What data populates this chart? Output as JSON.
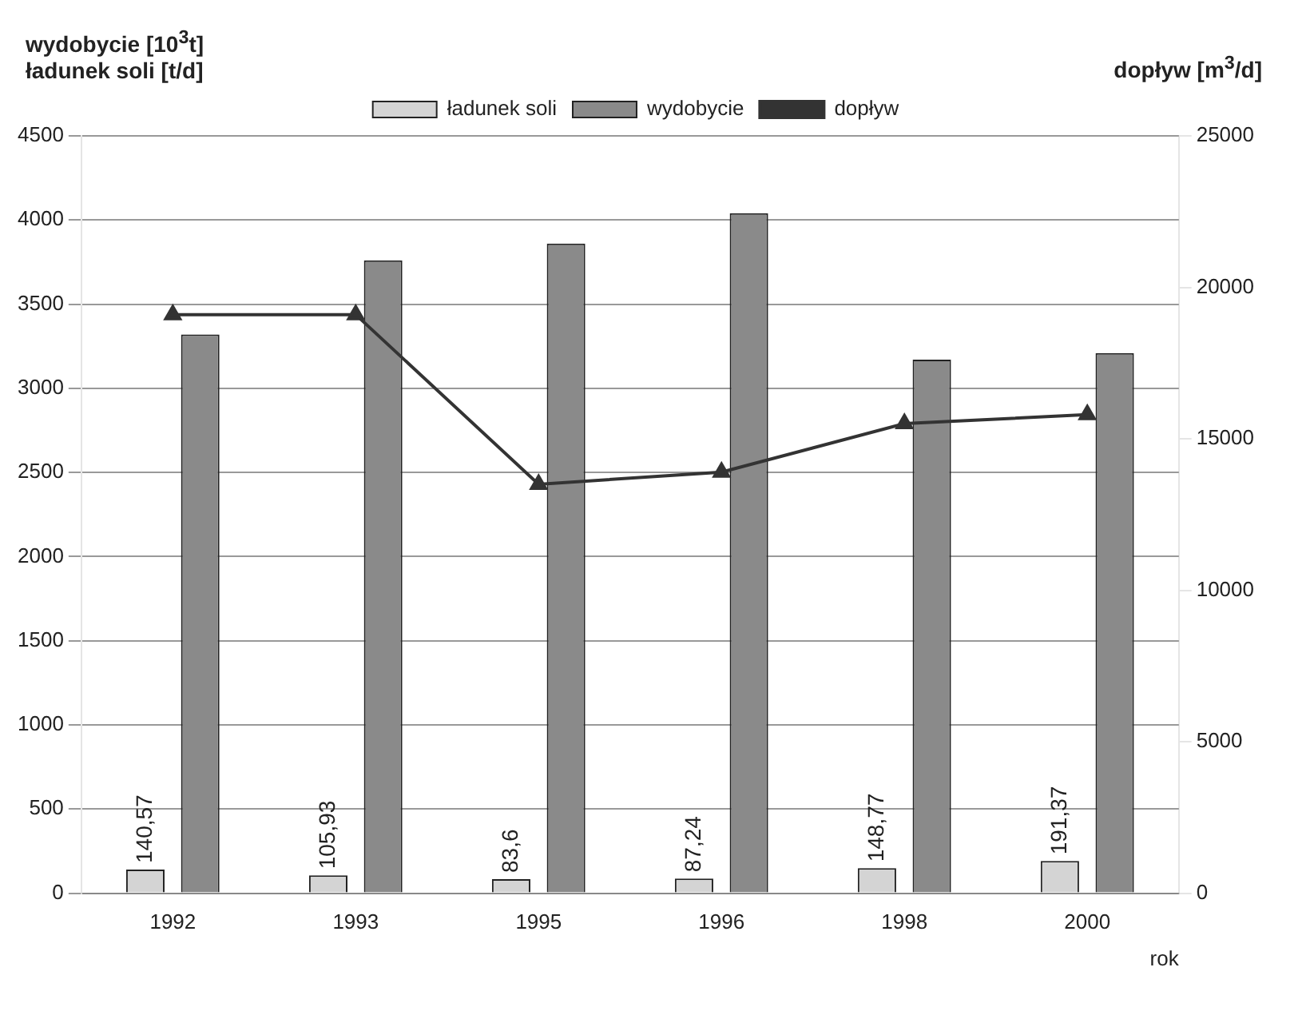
{
  "chart_data": {
    "type": "bar",
    "ylabel": "wydobycie [10$^{3}$t]\nładunek soli [t/d]",
    "y2label": "dopływ [m$^{3}$/d]",
    "xlabel": "rok",
    "categories": [
      "1992",
      "1993",
      "1995",
      "1996",
      "1998",
      "2000"
    ],
    "series": [
      {
        "name": "ładunek soli",
        "color": "#d4d4d4",
        "values": [
          140.57,
          105.93,
          83.6,
          87.24,
          148.77,
          191.37
        ],
        "value_labels": [
          "140,57",
          "105,93",
          "83,6",
          "87,24",
          "148,77",
          "191,37"
        ]
      },
      {
        "name": "wydobycie",
        "color": "#8a8a8a",
        "values": [
          3320,
          3760,
          3860,
          4040,
          3170,
          3210
        ]
      },
      {
        "name": "dopływ",
        "type": "line",
        "axis": "y2",
        "color": "#333333",
        "marker": "triangle",
        "values": [
          19100,
          19100,
          13500,
          13900,
          15500,
          15800
        ]
      }
    ],
    "ylim": [
      0,
      4500
    ],
    "yticks": [
      0,
      500,
      1000,
      1500,
      2000,
      2500,
      3000,
      3500,
      4000,
      4500
    ],
    "y2lim": [
      0,
      25000
    ],
    "y2ticks": [
      0,
      5000,
      10000,
      15000,
      20000,
      25000
    ],
    "grid": "y",
    "legend": "top"
  }
}
